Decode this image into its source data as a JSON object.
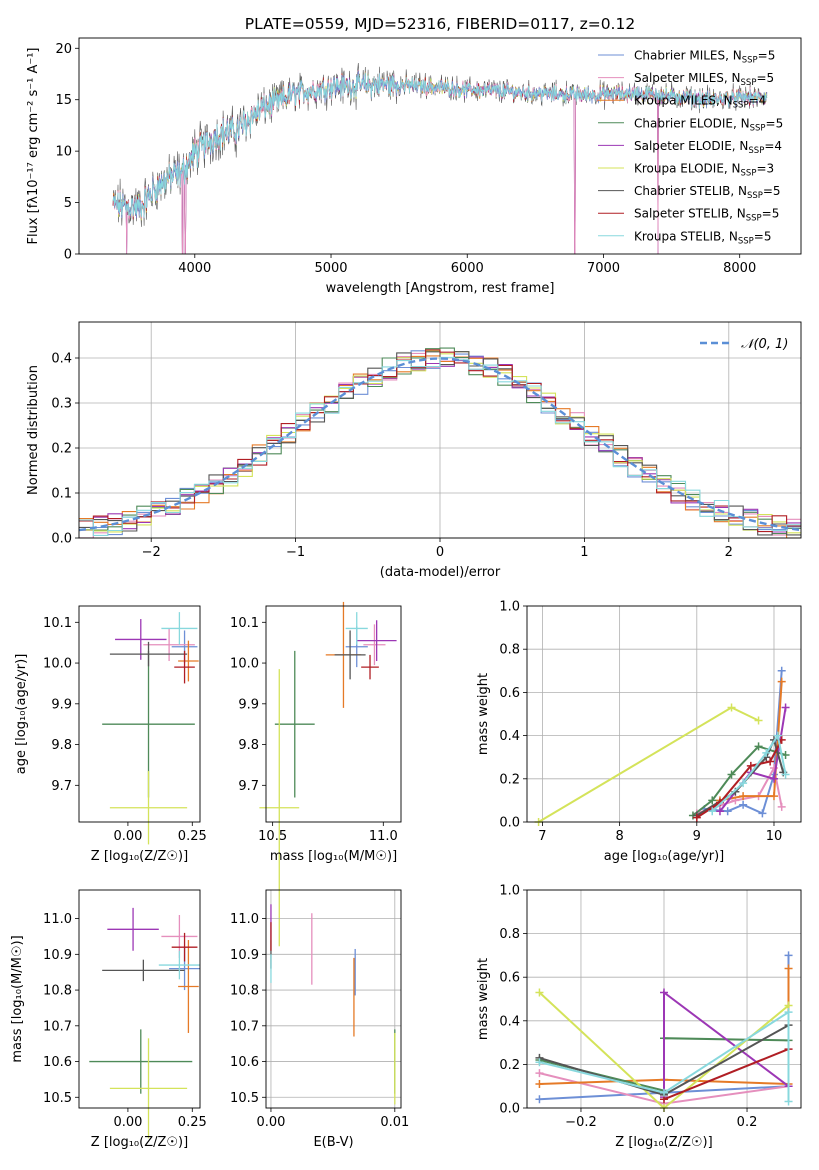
{
  "colors": {
    "Chabrier MILES": "#6d8fd6",
    "Salpeter MILES": "#e58fbd",
    "Kroupa MILES": "#e57a27",
    "Chabrier ELODIE": "#4e8a58",
    "Salpeter ELODIE": "#9c37b5",
    "Kroupa ELODIE": "#d4e35a",
    "Chabrier STELIB": "#555555",
    "Salpeter STELIB": "#b01e24",
    "Kroupa STELIB": "#88d8dd",
    "normal_curve": "#5b8fd6",
    "grid": "#b0b0b0"
  },
  "chart_data": [
    {
      "id": "spectrum",
      "type": "line",
      "title": "PLATE=0559, MJD=52316, FIBERID=0117, z=0.12",
      "xlabel": "wavelength [Angstrom, rest frame]",
      "ylabel": "Flux [fλ10⁻¹⁷ erg cm⁻² s⁻¹ A⁻¹]",
      "xlim": [
        3150,
        8450
      ],
      "ylim": [
        0,
        21
      ],
      "xticks": [
        4000,
        5000,
        6000,
        7000,
        8000
      ],
      "yticks": [
        0,
        5,
        10,
        15,
        20
      ],
      "grid": false,
      "legend_position": "top-right",
      "legend": [
        {
          "label": "Chabrier MILES, N",
          "sub": "SSP",
          "n": "=5"
        },
        {
          "label": "Salpeter MILES, N",
          "sub": "SSP",
          "n": "=5"
        },
        {
          "label": "Kroupa MILES, N",
          "sub": "SSP",
          "n": "=4"
        },
        {
          "label": "Chabrier ELODIE, N",
          "sub": "SSP",
          "n": "=5"
        },
        {
          "label": "Salpeter ELODIE, N",
          "sub": "SSP",
          "n": "=4"
        },
        {
          "label": "Kroupa ELODIE, N",
          "sub": "SSP",
          "n": "=3"
        },
        {
          "label": "Chabrier STELIB, N",
          "sub": "SSP",
          "n": "=5"
        },
        {
          "label": "Salpeter STELIB, N",
          "sub": "SSP",
          "n": "=5"
        },
        {
          "label": "Kroupa STELIB, N",
          "sub": "SSP",
          "n": "=5"
        }
      ],
      "continuum": [
        [
          3400,
          4.8
        ],
        [
          3500,
          4.6
        ],
        [
          3600,
          4.5
        ],
        [
          3700,
          6.2
        ],
        [
          3800,
          7.4
        ],
        [
          3900,
          7.8
        ],
        [
          4000,
          9.8
        ],
        [
          4100,
          11.0
        ],
        [
          4200,
          11.8
        ],
        [
          4300,
          11.9
        ],
        [
          4400,
          13.2
        ],
        [
          4500,
          14.2
        ],
        [
          4600,
          14.8
        ],
        [
          4700,
          15.4
        ],
        [
          4800,
          15.8
        ],
        [
          4900,
          16.0
        ],
        [
          5000,
          16.3
        ],
        [
          5200,
          16.4
        ],
        [
          5400,
          16.5
        ],
        [
          5600,
          16.4
        ],
        [
          5800,
          16.2
        ],
        [
          6000,
          16.0
        ],
        [
          6200,
          15.9
        ],
        [
          6400,
          15.7
        ],
        [
          6600,
          15.6
        ],
        [
          6800,
          15.5
        ],
        [
          7000,
          15.5
        ],
        [
          7200,
          15.6
        ],
        [
          7400,
          15.5
        ],
        [
          7600,
          15.2
        ],
        [
          7800,
          15.0
        ],
        [
          8000,
          15.2
        ],
        [
          8200,
          15.2
        ]
      ],
      "drops": [
        [
          3500,
          0
        ],
        [
          3910,
          0
        ],
        [
          3930,
          0
        ],
        [
          6790,
          0
        ],
        [
          7400,
          0
        ]
      ]
    },
    {
      "id": "residual_histogram",
      "type": "bar",
      "xlabel": "(data-model)/error",
      "ylabel": "Normed distribution",
      "xlim": [
        -2.5,
        2.5
      ],
      "ylim": [
        0,
        0.48
      ],
      "xticks": [
        -2,
        -1,
        0,
        1,
        2
      ],
      "yticks": [
        0.0,
        0.1,
        0.2,
        0.3,
        0.4
      ],
      "grid": true,
      "legend_position": "top-right",
      "legend_label": "𝒩(0, 1)",
      "bin_width": 0.1,
      "normal_curve": {
        "mean": 0,
        "sigma": 1
      }
    },
    {
      "id": "age_vs_Z",
      "type": "scatter",
      "xlabel": "Z [log₁₀(Z/Z☉)]",
      "ylabel": "age  [log₁₀(age/yr)]",
      "xlim": [
        -0.19,
        0.28
      ],
      "ylim": [
        9.61,
        10.14
      ],
      "xticks": [
        0.0,
        0.25
      ],
      "xticklabels": [
        "0.00",
        "0.25"
      ],
      "yticks": [
        9.7,
        9.8,
        9.9,
        10.0,
        10.1
      ],
      "grid": false,
      "points": [
        {
          "model": "Chabrier MILES",
          "x": 0.22,
          "xerr": 0.05,
          "y": 10.04,
          "yerr": 0.04
        },
        {
          "model": "Salpeter MILES",
          "x": 0.16,
          "xerr": 0.1,
          "y": 10.045,
          "yerr": 0.04
        },
        {
          "model": "Kroupa MILES",
          "x": 0.235,
          "xerr": 0.04,
          "y": 10.005,
          "yerr": 0.05
        },
        {
          "model": "Chabrier ELODIE",
          "x": 0.08,
          "xerr": 0.18,
          "y": 9.85,
          "yerr": 0.18
        },
        {
          "model": "Salpeter ELODIE",
          "x": 0.05,
          "xerr": 0.1,
          "y": 10.058,
          "yerr": 0.05
        },
        {
          "model": "Kroupa ELODIE",
          "x": 0.08,
          "xerr": 0.15,
          "y": 9.645,
          "yerr": 0.09
        },
        {
          "model": "Chabrier STELIB",
          "x": 0.08,
          "xerr": 0.15,
          "y": 10.022,
          "yerr": 0.03
        },
        {
          "model": "Salpeter STELIB",
          "x": 0.22,
          "xerr": 0.04,
          "y": 9.99,
          "yerr": 0.04
        },
        {
          "model": "Kroupa STELIB",
          "x": 0.2,
          "xerr": 0.07,
          "y": 10.085,
          "yerr": 0.04
        }
      ]
    },
    {
      "id": "age_vs_mass",
      "type": "scatter",
      "xlabel": "mass [log₁₀(M/M☉)]",
      "ylabel": "",
      "xlim": [
        10.47,
        11.08
      ],
      "ylim": [
        9.61,
        10.14
      ],
      "xticks": [
        10.5,
        11.0
      ],
      "xticklabels": [
        "10.5",
        "11.0"
      ],
      "yticks": [
        9.7,
        9.8,
        9.9,
        10.0,
        10.1
      ],
      "grid": false,
      "points": [
        {
          "model": "Chabrier MILES",
          "x": 10.88,
          "xerr": 0.05,
          "y": 10.04,
          "yerr": 0.05
        },
        {
          "model": "Salpeter MILES",
          "x": 10.96,
          "xerr": 0.05,
          "y": 10.045,
          "yerr": 0.05
        },
        {
          "model": "Kroupa MILES",
          "x": 10.82,
          "xerr": 0.08,
          "y": 10.02,
          "yerr": 0.13
        },
        {
          "model": "Chabrier ELODIE",
          "x": 10.6,
          "xerr": 0.09,
          "y": 9.85,
          "yerr": 0.18
        },
        {
          "model": "Salpeter ELODIE",
          "x": 10.97,
          "xerr": 0.09,
          "y": 10.055,
          "yerr": 0.05
        },
        {
          "model": "Kroupa ELODIE",
          "x": 10.53,
          "xerr": 0.09,
          "y": 9.645,
          "yerr": 0.34
        },
        {
          "model": "Chabrier STELIB",
          "x": 10.85,
          "xerr": 0.07,
          "y": 10.02,
          "yerr": 0.06
        },
        {
          "model": "Salpeter STELIB",
          "x": 10.94,
          "xerr": 0.04,
          "y": 9.99,
          "yerr": 0.03
        },
        {
          "model": "Kroupa STELIB",
          "x": 10.88,
          "xerr": 0.05,
          "y": 10.085,
          "yerr": 0.04
        }
      ]
    },
    {
      "id": "mass_weight_vs_age",
      "type": "line",
      "xlabel": "age  [log₁₀(age/yr)]",
      "ylabel": "mass weight",
      "xlim": [
        6.8,
        10.35
      ],
      "ylim": [
        0,
        1.0
      ],
      "xticks": [
        7,
        8,
        9,
        10
      ],
      "yticks": [
        0.0,
        0.2,
        0.4,
        0.6,
        0.8,
        1.0
      ],
      "grid": true,
      "series": [
        {
          "model": "Chabrier MILES",
          "points": [
            [
              9.1,
              0.06
            ],
            [
              9.4,
              0.05
            ],
            [
              9.6,
              0.08
            ],
            [
              9.85,
              0.04
            ],
            [
              10.0,
              0.22
            ],
            [
              10.1,
              0.7
            ]
          ]
        },
        {
          "model": "Salpeter MILES",
          "points": [
            [
              9.0,
              0.04
            ],
            [
              9.5,
              0.1
            ],
            [
              9.8,
              0.12
            ],
            [
              10.0,
              0.25
            ],
            [
              10.1,
              0.07
            ]
          ]
        },
        {
          "model": "Kroupa MILES",
          "points": [
            [
              9.3,
              0.1
            ],
            [
              9.6,
              0.12
            ],
            [
              10.0,
              0.12
            ],
            [
              10.1,
              0.65
            ]
          ]
        },
        {
          "model": "Chabrier ELODIE",
          "points": [
            [
              8.95,
              0.03
            ],
            [
              9.2,
              0.1
            ],
            [
              9.45,
              0.22
            ],
            [
              9.8,
              0.35
            ],
            [
              10.15,
              0.31
            ]
          ]
        },
        {
          "model": "Salpeter ELODIE",
          "points": [
            [
              9.3,
              0.05
            ],
            [
              9.7,
              0.23
            ],
            [
              10.0,
              0.2
            ],
            [
              10.15,
              0.53
            ]
          ]
        },
        {
          "model": "Kroupa ELODIE",
          "points": [
            [
              6.95,
              0.0
            ],
            [
              9.45,
              0.53
            ],
            [
              9.8,
              0.47
            ]
          ]
        },
        {
          "model": "Chabrier STELIB",
          "points": [
            [
              9.0,
              0.03
            ],
            [
              9.5,
              0.14
            ],
            [
              9.9,
              0.3
            ],
            [
              10.0,
              0.38
            ],
            [
              10.12,
              0.23
            ]
          ]
        },
        {
          "model": "Salpeter STELIB",
          "points": [
            [
              9.0,
              0.02
            ],
            [
              9.3,
              0.09
            ],
            [
              9.7,
              0.26
            ],
            [
              9.95,
              0.28
            ],
            [
              10.1,
              0.38
            ]
          ]
        },
        {
          "model": "Kroupa STELIB",
          "points": [
            [
              9.2,
              0.05
            ],
            [
              9.6,
              0.18
            ],
            [
              9.9,
              0.32
            ],
            [
              10.05,
              0.4
            ],
            [
              10.15,
              0.22
            ]
          ]
        }
      ]
    },
    {
      "id": "mass_vs_Z",
      "type": "scatter",
      "xlabel": "Z [log₁₀(Z/Z☉)]",
      "ylabel": "mass [log₁₀(M/M☉)]",
      "xlim": [
        -0.19,
        0.28
      ],
      "ylim": [
        10.47,
        11.08
      ],
      "xticks": [
        0.0,
        0.25
      ],
      "xticklabels": [
        "0.00",
        "0.25"
      ],
      "yticks": [
        10.5,
        10.6,
        10.7,
        10.8,
        10.9,
        11.0
      ],
      "grid": false,
      "points": [
        {
          "model": "Chabrier MILES",
          "x": 0.22,
          "xerr": 0.06,
          "y": 10.86,
          "yerr": 0.06
        },
        {
          "model": "Salpeter MILES",
          "x": 0.2,
          "xerr": 0.07,
          "y": 10.95,
          "yerr": 0.06
        },
        {
          "model": "Kroupa MILES",
          "x": 0.235,
          "xerr": 0.04,
          "y": 10.81,
          "yerr": 0.13
        },
        {
          "model": "Chabrier ELODIE",
          "x": 0.05,
          "xerr": 0.2,
          "y": 10.6,
          "yerr": 0.09
        },
        {
          "model": "Salpeter ELODIE",
          "x": 0.02,
          "xerr": 0.1,
          "y": 10.97,
          "yerr": 0.06
        },
        {
          "model": "Kroupa ELODIE",
          "x": 0.08,
          "xerr": 0.15,
          "y": 10.525,
          "yerr": 0.14
        },
        {
          "model": "Chabrier STELIB",
          "x": 0.06,
          "xerr": 0.16,
          "y": 10.855,
          "yerr": 0.03
        },
        {
          "model": "Salpeter STELIB",
          "x": 0.22,
          "xerr": 0.05,
          "y": 10.92,
          "yerr": 0.04
        },
        {
          "model": "Kroupa STELIB",
          "x": 0.2,
          "xerr": 0.08,
          "y": 10.87,
          "yerr": 0.04
        }
      ]
    },
    {
      "id": "mass_vs_EBV",
      "type": "scatter",
      "xlabel": "E(B-V)",
      "ylabel": "",
      "xlim": [
        -0.0004,
        0.0105
      ],
      "ylim": [
        10.47,
        11.08
      ],
      "xticks": [
        0.0,
        0.01
      ],
      "xticklabels": [
        "0.00",
        "0.01"
      ],
      "yticks": [
        10.5,
        10.6,
        10.7,
        10.8,
        10.9,
        11.0
      ],
      "grid": true,
      "points": [
        {
          "model": "Chabrier MILES",
          "x": 0.0068,
          "y": 10.85,
          "yerr": 0.065
        },
        {
          "model": "Salpeter MILES",
          "x": 0.0033,
          "y": 10.915,
          "yerr": 0.1
        },
        {
          "model": "Kroupa MILES",
          "x": 0.0067,
          "y": 10.78,
          "yerr": 0.11
        },
        {
          "model": "Chabrier ELODIE",
          "x": 0.01,
          "y": 10.6,
          "yerr": 0.09
        },
        {
          "model": "Salpeter ELODIE",
          "x": 0.0,
          "y": 10.99,
          "yerr": 0.05
        },
        {
          "model": "Kroupa ELODIE",
          "x": 0.01,
          "y": 10.58,
          "yerr": 0.1
        },
        {
          "model": "Chabrier STELIB",
          "x": 0.0,
          "y": 10.9,
          "yerr": 0.04
        },
        {
          "model": "Salpeter STELIB",
          "x": 0.0,
          "y": 10.95,
          "yerr": 0.04
        },
        {
          "model": "Kroupa STELIB",
          "x": 0.0,
          "y": 10.86,
          "yerr": 0.04
        }
      ]
    },
    {
      "id": "mass_weight_vs_Z",
      "type": "line",
      "xlabel": "Z [log₁₀(Z/Z☉)]",
      "ylabel": "mass weight",
      "xlim": [
        -0.33,
        0.33
      ],
      "ylim": [
        0,
        1.0
      ],
      "xticks": [
        -0.2,
        0.0,
        0.2
      ],
      "xticklabels": [
        "−0.2",
        "0.0",
        "0.2"
      ],
      "yticks": [
        0.0,
        0.2,
        0.4,
        0.6,
        0.8,
        1.0
      ],
      "grid": true,
      "series": [
        {
          "model": "Chabrier MILES",
          "points": [
            [
              -0.3,
              0.04
            ],
            [
              0.0,
              0.07
            ],
            [
              0.3,
              0.1
            ],
            [
              0.3,
              0.7
            ]
          ]
        },
        {
          "model": "Salpeter MILES",
          "points": [
            [
              -0.3,
              0.16
            ],
            [
              0.0,
              0.02
            ],
            [
              0.3,
              0.1
            ]
          ]
        },
        {
          "model": "Kroupa MILES",
          "points": [
            [
              -0.3,
              0.11
            ],
            [
              0.0,
              0.13
            ],
            [
              0.3,
              0.11
            ],
            [
              0.3,
              0.64
            ]
          ]
        },
        {
          "model": "Chabrier ELODIE",
          "points": [
            [
              -0.3,
              0.22
            ],
            [
              0.0,
              0.08
            ],
            [
              0.0,
              0.32
            ],
            [
              0.3,
              0.31
            ]
          ]
        },
        {
          "model": "Salpeter ELODIE",
          "points": [
            [
              0.0,
              0.05
            ],
            [
              0.0,
              0.53
            ],
            [
              0.3,
              0.1
            ]
          ]
        },
        {
          "model": "Kroupa ELODIE",
          "points": [
            [
              -0.3,
              0.53
            ],
            [
              0.0,
              0.0
            ],
            [
              0.3,
              0.47
            ]
          ]
        },
        {
          "model": "Chabrier STELIB",
          "points": [
            [
              -0.3,
              0.23
            ],
            [
              0.0,
              0.06
            ],
            [
              0.3,
              0.38
            ]
          ]
        },
        {
          "model": "Salpeter STELIB",
          "points": [
            [
              0.0,
              0.04
            ],
            [
              0.3,
              0.27
            ]
          ]
        },
        {
          "model": "Kroupa STELIB",
          "points": [
            [
              -0.3,
              0.21
            ],
            [
              0.0,
              0.07
            ],
            [
              0.3,
              0.44
            ],
            [
              0.3,
              0.03
            ]
          ]
        }
      ]
    }
  ]
}
